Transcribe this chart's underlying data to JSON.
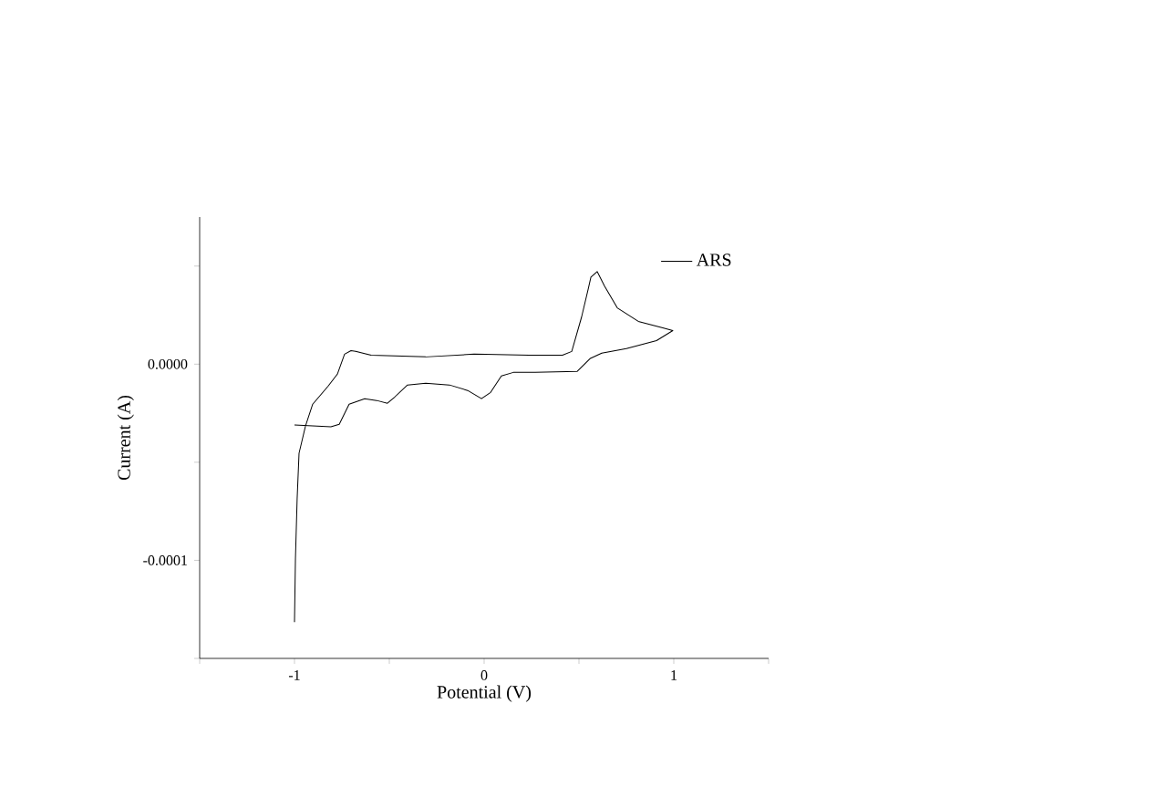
{
  "chart_data": {
    "type": "line",
    "xlabel": "Potential (V)",
    "ylabel": "Current (A)",
    "xlim": [
      -1.5,
      1.5
    ],
    "ylim": [
      -0.00015,
      7.5e-05
    ],
    "xticks": [
      {
        "value": -1.5,
        "label": null
      },
      -1,
      {
        "value": -0.5,
        "label": null
      },
      0,
      {
        "value": 0.5,
        "label": null
      },
      1,
      {
        "value": 1.5,
        "label": null
      }
    ],
    "yticks": [
      {
        "value": -0.00015,
        "label": null
      },
      {
        "value": -0.0001,
        "label": "-0.0001"
      },
      {
        "value": -5e-05,
        "label": null
      },
      {
        "value": 0,
        "label": "0.0000"
      },
      {
        "value": 5e-05,
        "label": null
      }
    ],
    "legend": "top right",
    "marker": "none",
    "line_style": "solid",
    "series": [
      {
        "name": "ARS",
        "color": "#000000",
        "x": [
          -1.0,
          -0.808,
          -0.764,
          -0.712,
          -0.63,
          -0.567,
          -0.51,
          -0.471,
          -0.404,
          -0.308,
          -0.183,
          -0.087,
          -0.014,
          0.034,
          0.091,
          0.154,
          0.269,
          0.49,
          0.558,
          0.62,
          0.75,
          0.909,
          0.995,
          0.942,
          0.813,
          0.702,
          0.635,
          0.596,
          0.563,
          0.548,
          0.514,
          0.462,
          0.413,
          0.236,
          -0.053,
          -0.308,
          -0.596,
          -0.678,
          -0.702,
          -0.736,
          -0.774,
          -0.822,
          -0.904,
          -0.942,
          -0.976,
          -0.986,
          -0.995,
          -1.0
        ],
        "values": [
          -3.1e-05,
          -3.19e-05,
          -3.06e-05,
          -2.04e-05,
          -1.76e-05,
          -1.85e-05,
          -1.99e-05,
          -1.67e-05,
          -1.06e-05,
          -9.7e-06,
          -1.06e-05,
          -1.34e-05,
          -1.76e-05,
          -1.44e-05,
          -6e-06,
          -4.2e-06,
          -4.2e-06,
          -3.7e-06,
          2.8e-06,
          5.6e-06,
          7.9e-06,
          1.2e-05,
          1.71e-05,
          1.85e-05,
          2.18e-05,
          2.87e-05,
          3.98e-05,
          4.72e-05,
          4.44e-05,
          3.8e-05,
          2.41e-05,
          6.5e-06,
          4.6e-06,
          4.6e-06,
          5.1e-06,
          3.7e-06,
          4.6e-06,
          6.5e-06,
          6.9e-06,
          5.1e-06,
          -5.1e-06,
          -1.11e-05,
          -2.04e-05,
          -3.15e-05,
          -4.54e-05,
          -6.85e-05,
          -9.91e-05,
          -0.0001315
        ]
      }
    ]
  }
}
